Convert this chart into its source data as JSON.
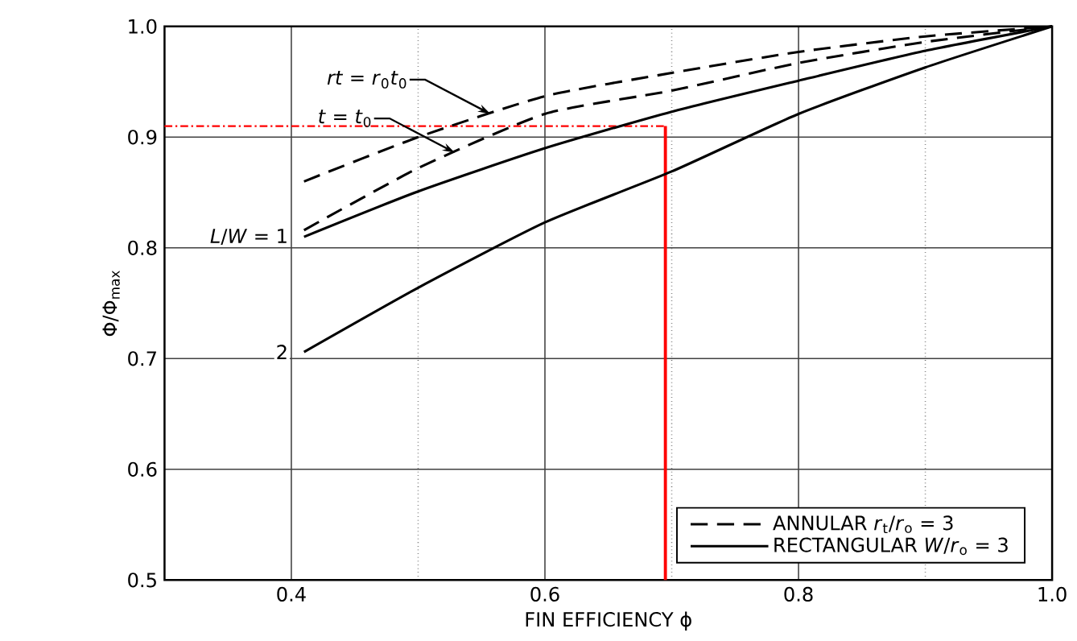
{
  "chart_data": {
    "type": "line",
    "xlabel": "FIN EFFICIENCY ϕ",
    "ylabel": "Φ/Φ$_{max}$",
    "x": [
      0.41,
      0.5,
      0.6,
      0.7,
      0.8,
      0.9,
      1.0
    ],
    "series": [
      {
        "name": "ANNULAR *r*$_{t}$/*r*$_{o}$ = 3",
        "color": "#000000",
        "line_style": "dashed",
        "values": [
          0.86,
          0.9,
          0.937,
          0.958,
          0.977,
          0.991,
          1.0
        ]
      },
      {
        "color": "#000000",
        "line_style": "dashed",
        "values": [
          0.816,
          0.872,
          0.921,
          0.942,
          0.967,
          0.986,
          1.0
        ]
      },
      {
        "name": "RECTANGULAR *W*/*r*$_{o}$ = 3",
        "color": "#000000",
        "line_style": "solid",
        "values": [
          0.81,
          0.851,
          0.89,
          0.923,
          0.951,
          0.978,
          1.0
        ]
      },
      {
        "color": "#000000",
        "line_style": "solid",
        "values": [
          0.706,
          0.764,
          0.823,
          0.869,
          0.921,
          0.963,
          1.0
        ]
      }
    ],
    "xlim": [
      0.3,
      1.0
    ],
    "ylim": [
      0.5,
      1.0
    ],
    "xticks": [
      0.4,
      {
        "value": 0.5,
        "label": null
      },
      0.6,
      {
        "value": 0.7,
        "label": null
      },
      0.8,
      {
        "value": 0.9,
        "label": null
      },
      {
        "value": 1.0,
        "label": "1.0"
      }
    ],
    "yticks": [
      0.5,
      0.6,
      0.7,
      0.8,
      0.9,
      {
        "value": 1.0,
        "label": "1.0"
      }
    ],
    "grid": true,
    "legend": "bottom right",
    "marker": "none",
    "ref_lines": [
      {
        "axis": "y",
        "value": 0.91,
        "color": "#ff0000",
        "line_style": "dashdot"
      },
      {
        "axis": "x",
        "value": 0.695,
        "color": "#ff0000",
        "line_style": "solid"
      }
    ],
    "annotations": [
      {
        "text": "*rt* = *r*$_{0}$*t*$_{0}$",
        "x": 0.557,
        "y": 0.921
      },
      {
        "text": "*t* = *t*$_{0}$",
        "x": 0.529,
        "y": 0.886
      },
      {
        "text": "*L*/*W* = 1",
        "x": 0.41,
        "y": 0.81
      },
      {
        "text": "2",
        "x": 0.41,
        "y": 0.706
      }
    ]
  }
}
